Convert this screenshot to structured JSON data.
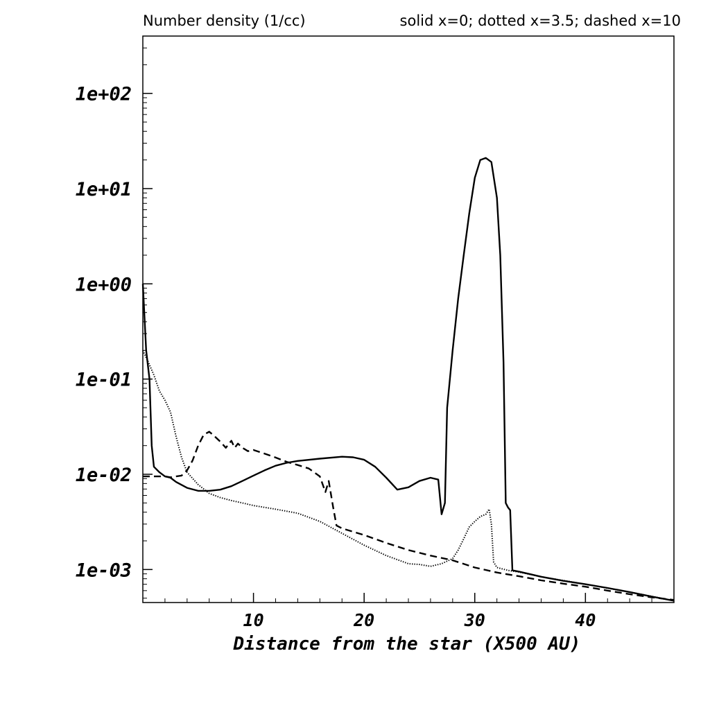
{
  "chart_data": {
    "type": "line",
    "title": "Number density (1/cc)",
    "legend_text": "solid x=0; dotted x=3.5; dashed x=10",
    "xlabel": "Distance from the star (X500 AU)",
    "ylabel": "",
    "xlim": [
      0,
      48
    ],
    "ylim": [
      0.00045,
      400
    ],
    "yscale": "log",
    "grid": false,
    "x_ticks": [
      10,
      20,
      30,
      40
    ],
    "y_ticks": [
      0.001,
      0.01,
      0.1,
      1,
      10,
      100
    ],
    "y_tick_labels": [
      "1e-03",
      "1e-02",
      "1e-01",
      "1e+00",
      "1e+01",
      "1e+02"
    ],
    "series": [
      {
        "style": "solid",
        "x": [
          0.0,
          0.3,
          0.6,
          0.8,
          1.0,
          1.5,
          2.0,
          2.5,
          3.0,
          4.0,
          5.0,
          6.0,
          7.0,
          8.0,
          9.0,
          10.0,
          11.0,
          12.0,
          13.0,
          14.0,
          16.0,
          18.0,
          19.0,
          20.0,
          21.0,
          22.0,
          23.0,
          24.0,
          25.0,
          26.0,
          26.7,
          27.0,
          27.3,
          27.5,
          28.0,
          28.5,
          29.0,
          29.5,
          30.0,
          30.5,
          31.0,
          31.5,
          32.0,
          32.3,
          32.6,
          32.8,
          33.0,
          33.2,
          33.4,
          34.0,
          36.0,
          38.0,
          40.0,
          42.0,
          44.0,
          46.0,
          48.0
        ],
        "y": [
          1.0,
          0.2,
          0.1,
          0.02,
          0.012,
          0.0105,
          0.0095,
          0.0092,
          0.0083,
          0.0072,
          0.0067,
          0.0067,
          0.0069,
          0.0075,
          0.0085,
          0.0097,
          0.011,
          0.0123,
          0.0132,
          0.0138,
          0.0146,
          0.0153,
          0.0151,
          0.0142,
          0.012,
          0.0092,
          0.0069,
          0.0073,
          0.0085,
          0.0092,
          0.0088,
          0.0038,
          0.005,
          0.05,
          0.2,
          0.7,
          2.0,
          5.5,
          13.0,
          20.0,
          21.0,
          19.0,
          8.0,
          2.0,
          0.15,
          0.005,
          0.0045,
          0.0042,
          0.00098,
          0.00095,
          0.00084,
          0.00076,
          0.0007,
          0.00064,
          0.00058,
          0.00052,
          0.00047
        ]
      },
      {
        "style": "dotted",
        "x": [
          0.0,
          0.5,
          1.0,
          1.5,
          2.0,
          2.5,
          3.0,
          3.5,
          4.0,
          5.0,
          6.0,
          7.0,
          8.0,
          9.0,
          10.0,
          12.0,
          14.0,
          16.0,
          18.0,
          20.0,
          22.0,
          24.0,
          25.0,
          26.0,
          27.0,
          28.0,
          28.5,
          29.0,
          29.5,
          30.0,
          30.5,
          31.0,
          31.3,
          31.5,
          31.7,
          32.0,
          33.0,
          34.0,
          36.0,
          40.0,
          44.0,
          48.0
        ],
        "y": [
          0.2,
          0.15,
          0.11,
          0.075,
          0.06,
          0.045,
          0.025,
          0.015,
          0.0105,
          0.0078,
          0.0063,
          0.0057,
          0.0053,
          0.005,
          0.0047,
          0.0043,
          0.0039,
          0.0032,
          0.0024,
          0.0018,
          0.0014,
          0.00115,
          0.00113,
          0.00108,
          0.00115,
          0.0013,
          0.0016,
          0.0021,
          0.0028,
          0.0032,
          0.0036,
          0.0038,
          0.0043,
          0.003,
          0.0012,
          0.00105,
          0.00098,
          0.00094,
          0.00084,
          0.0007,
          0.00058,
          0.00047
        ]
      },
      {
        "style": "dashed",
        "x": [
          0.0,
          1.0,
          2.0,
          2.5,
          3.0,
          3.5,
          4.0,
          4.5,
          5.0,
          5.5,
          6.0,
          6.5,
          7.0,
          7.5,
          8.0,
          8.3,
          8.6,
          9.0,
          9.5,
          10.0,
          11.0,
          12.0,
          13.0,
          14.0,
          15.0,
          16.0,
          16.5,
          16.8,
          17.2,
          17.5,
          18.0,
          20.0,
          22.0,
          24.0,
          26.0,
          28.0,
          30.0,
          32.0,
          34.0,
          36.0,
          38.0,
          40.0,
          42.0,
          44.0,
          46.0,
          48.0
        ],
        "y": [
          0.0095,
          0.0095,
          0.0095,
          0.0093,
          0.0095,
          0.0097,
          0.011,
          0.014,
          0.02,
          0.026,
          0.028,
          0.025,
          0.022,
          0.019,
          0.0225,
          0.019,
          0.021,
          0.019,
          0.0175,
          0.018,
          0.0165,
          0.015,
          0.0135,
          0.0125,
          0.0115,
          0.0095,
          0.0065,
          0.0085,
          0.0045,
          0.0029,
          0.0027,
          0.0023,
          0.0019,
          0.0016,
          0.0014,
          0.00125,
          0.00105,
          0.00093,
          0.00085,
          0.00077,
          0.00071,
          0.00066,
          0.0006,
          0.00055,
          0.00051,
          0.00048
        ]
      }
    ]
  }
}
